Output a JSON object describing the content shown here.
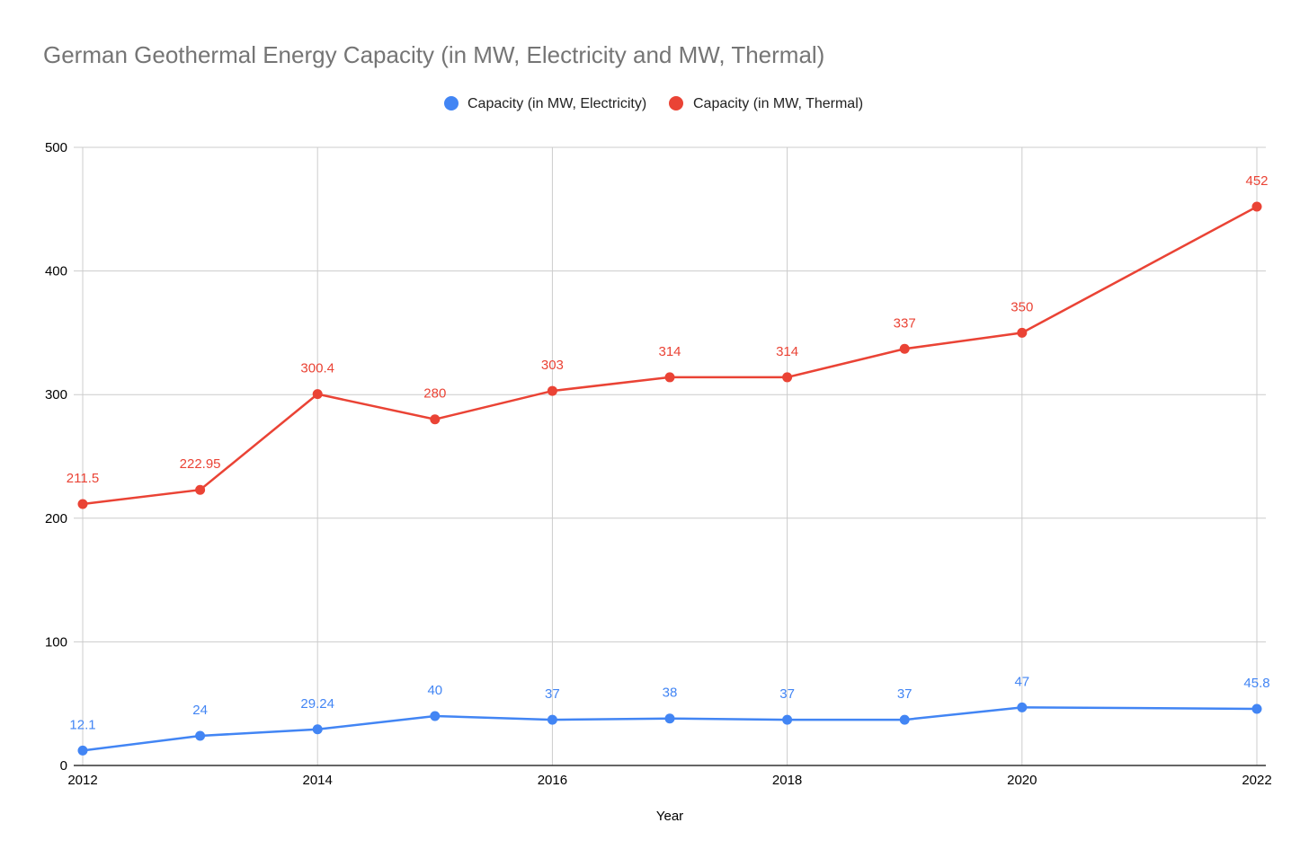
{
  "chart_data": {
    "type": "line",
    "title": "German Geothermal Energy Capacity (in MW, Electricity and MW, Thermal)",
    "xlabel": "Year",
    "ylabel": "",
    "xlim": [
      2012,
      2022
    ],
    "ylim": [
      0,
      500
    ],
    "x_ticks": [
      "2012",
      "2014",
      "2016",
      "2018",
      "2020",
      "2022"
    ],
    "y_ticks": [
      "0",
      "100",
      "200",
      "300",
      "400",
      "500"
    ],
    "grid": true,
    "legend_position": "top",
    "x": [
      2012,
      2013,
      2014,
      2015,
      2016,
      2017,
      2018,
      2019,
      2020,
      2022
    ],
    "series": [
      {
        "name": "Capacity (in MW, Electricity)",
        "color": "#4285f4",
        "values": [
          12.1,
          24,
          29.24,
          40,
          37,
          38,
          37,
          37,
          47,
          45.8
        ],
        "labels": [
          "12.1",
          "24",
          "29.24",
          "40",
          "37",
          "38",
          "37",
          "37",
          "47",
          "45.8"
        ]
      },
      {
        "name": "Capacity (in MW, Thermal)",
        "color": "#ea4335",
        "values": [
          211.5,
          222.95,
          300.4,
          280,
          303,
          314,
          314,
          337,
          350,
          452
        ],
        "labels": [
          "211.5",
          "222.95",
          "300.4",
          "280",
          "303",
          "314",
          "314",
          "337",
          "350",
          "452"
        ]
      }
    ]
  }
}
